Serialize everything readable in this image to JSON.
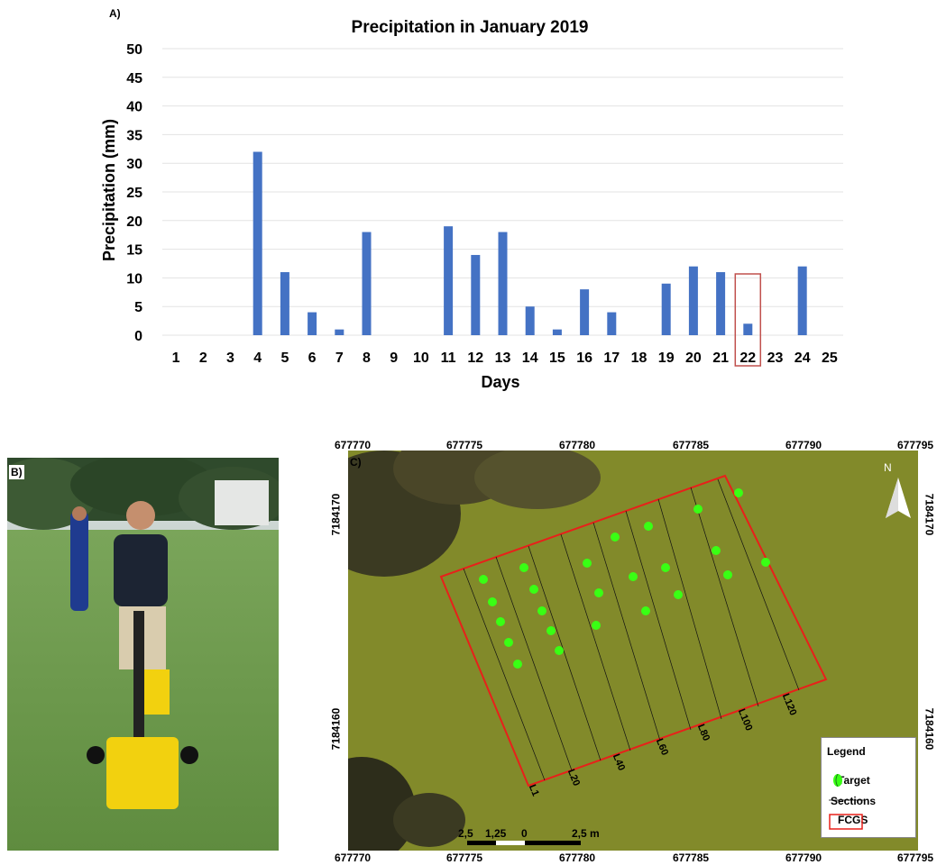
{
  "panels": {
    "a": "A)",
    "b": "B)",
    "c": "C)"
  },
  "chart_data": {
    "type": "bar",
    "title": "Precipitation in January 2019",
    "xlabel": "Days",
    "ylabel": "Precipitation (mm)",
    "ylim": [
      0,
      50
    ],
    "yticks": [
      "0",
      "5",
      "10",
      "15",
      "20",
      "25",
      "30",
      "35",
      "40",
      "45",
      "50"
    ],
    "categories": [
      "1",
      "2",
      "3",
      "4",
      "5",
      "6",
      "7",
      "8",
      "9",
      "10",
      "11",
      "12",
      "13",
      "14",
      "15",
      "16",
      "17",
      "18",
      "19",
      "20",
      "21",
      "22",
      "23",
      "24",
      "25"
    ],
    "values": [
      0,
      0,
      0,
      32,
      11,
      4,
      1,
      18,
      0,
      0,
      19,
      14,
      18,
      5,
      1,
      8,
      4,
      0,
      9,
      12,
      11,
      2,
      0,
      12,
      0
    ],
    "highlight_category": "22",
    "bar_color": "#4472c4",
    "highlight_color": "#c0504d",
    "grid": true
  },
  "map": {
    "x_ticks": [
      "677770",
      "677775",
      "677780",
      "677785",
      "677790",
      "677795"
    ],
    "y_ticks": [
      "7184170",
      "7184160"
    ],
    "north_label": "N",
    "sections": [
      "L1",
      "L20",
      "L40",
      "L60",
      "L80",
      "L100",
      "L120"
    ],
    "scale_labels": [
      "2,5",
      "1,25",
      "0",
      "2,5 m"
    ],
    "legend": {
      "title": "Legend",
      "items": [
        "Target",
        "Sections",
        "FCGS"
      ]
    },
    "target_color": "#39ff14",
    "boundary_color": "#e8201a"
  }
}
